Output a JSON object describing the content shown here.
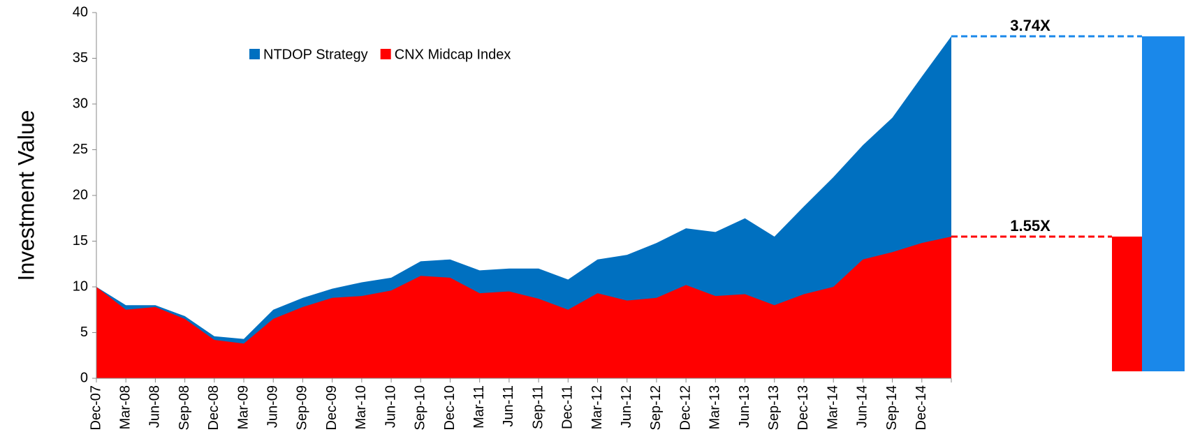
{
  "chart_data": {
    "type": "area",
    "ylabel": "Investment Value",
    "categories": [
      "Dec-07",
      "Mar-08",
      "Jun-08",
      "Sep-08",
      "Dec-08",
      "Mar-09",
      "Jun-09",
      "Sep-09",
      "Dec-09",
      "Mar-10",
      "Jun-10",
      "Sep-10",
      "Dec-10",
      "Mar-11",
      "Jun-11",
      "Sep-11",
      "Dec-11",
      "Mar-12",
      "Jun-12",
      "Sep-12",
      "Dec-12",
      "Mar-13",
      "Jun-13",
      "Sep-13",
      "Dec-13",
      "Mar-14",
      "Jun-14",
      "Sep-14",
      "Dec-14",
      null
    ],
    "series": [
      {
        "name": "NTDOP Strategy",
        "color": "#0070c0",
        "bar_color": "#1a88ea",
        "values": [
          10,
          8,
          8,
          6.8,
          4.6,
          4.3,
          7.5,
          8.8,
          9.8,
          10.5,
          11,
          12.8,
          13,
          11.8,
          12,
          12,
          10.8,
          13,
          13.5,
          14.8,
          16.4,
          16,
          17.5,
          15.5,
          18.8,
          22,
          25.5,
          28.5,
          33,
          37.4
        ]
      },
      {
        "name": "CNX Midcap Index",
        "color": "#ff0000",
        "bar_color": "#ff0000",
        "values": [
          10,
          7.5,
          7.8,
          6.5,
          4.2,
          3.8,
          6.5,
          7.8,
          8.8,
          9,
          9.6,
          11.2,
          11,
          9.3,
          9.5,
          8.7,
          7.5,
          9.3,
          8.5,
          8.8,
          10.2,
          9,
          9.2,
          8,
          9.2,
          10,
          13,
          13.8,
          14.8,
          15.5
        ]
      }
    ],
    "annotations": [
      "3.74X",
      "1.55X"
    ],
    "ylim": [
      0,
      40
    ],
    "yticks": [
      0,
      5,
      10,
      15,
      20,
      25,
      30,
      35,
      40
    ],
    "legend": "top-left",
    "grid": false
  }
}
